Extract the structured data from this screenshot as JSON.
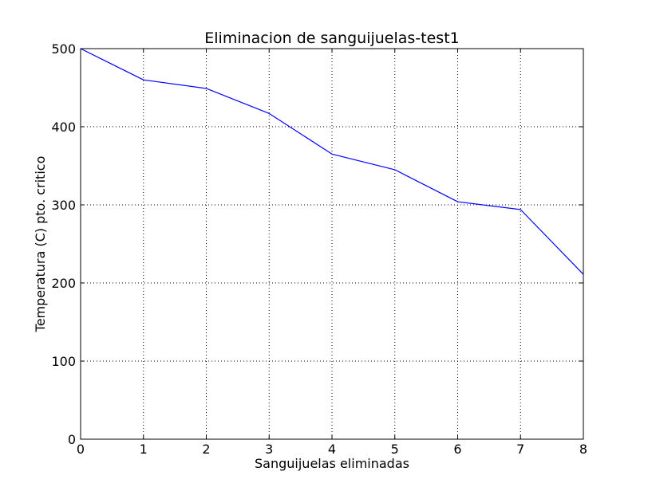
{
  "chart_data": {
    "type": "line",
    "title": "Eliminacion de sanguijuelas-test1",
    "xlabel": "Sanguijuelas eliminadas",
    "ylabel": "Temperatura (C) pto. critico",
    "xlim": [
      0,
      8
    ],
    "ylim": [
      0,
      500
    ],
    "xticks": [
      "0",
      "1",
      "2",
      "3",
      "4",
      "5",
      "6",
      "7",
      "8"
    ],
    "yticks": [
      "0",
      "100",
      "200",
      "300",
      "400",
      "500"
    ],
    "grid": true,
    "series": [
      {
        "color": "#0000ff",
        "x": [
          0,
          1,
          2,
          3,
          4,
          5,
          6,
          7,
          8
        ],
        "y": [
          500,
          460,
          449,
          417,
          365,
          345,
          304,
          294,
          211
        ]
      }
    ]
  }
}
